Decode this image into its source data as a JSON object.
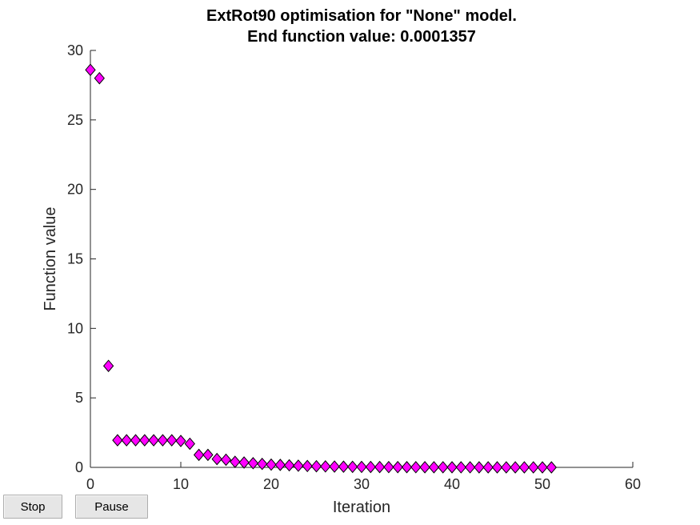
{
  "chart_data": {
    "type": "scatter",
    "title": [
      "ExtRot90 optimisation for \"None\" model.",
      "End function value: 0.0001357"
    ],
    "xlabel": "Iteration",
    "ylabel": "Function value",
    "xlim": [
      0,
      60
    ],
    "ylim": [
      0,
      30
    ],
    "xticks": [
      0,
      10,
      20,
      30,
      40,
      50,
      60
    ],
    "yticks": [
      0,
      5,
      10,
      15,
      20,
      25,
      30
    ],
    "grid": false,
    "marker": "diamond",
    "marker_color": "#ff00ff",
    "marker_edge_color": "#000000",
    "series": [
      {
        "x": [
          0,
          1,
          2,
          3,
          4,
          5,
          6,
          7,
          8,
          9,
          10,
          11,
          12,
          13,
          14,
          15,
          16,
          17,
          18,
          19,
          20,
          21,
          22,
          23,
          24,
          25,
          26,
          27,
          28,
          29,
          30,
          31,
          32,
          33,
          34,
          35,
          36,
          37,
          38,
          39,
          40,
          41,
          42,
          43,
          44,
          45,
          46,
          47,
          48,
          49,
          50,
          51
        ],
        "y": [
          28.6,
          28.0,
          7.3,
          1.95,
          1.95,
          1.95,
          1.95,
          1.95,
          1.95,
          1.95,
          1.9,
          1.7,
          0.9,
          0.9,
          0.6,
          0.55,
          0.4,
          0.35,
          0.3,
          0.25,
          0.2,
          0.18,
          0.15,
          0.12,
          0.1,
          0.08,
          0.07,
          0.06,
          0.05,
          0.04,
          0.035,
          0.03,
          0.025,
          0.02,
          0.018,
          0.015,
          0.012,
          0.01,
          0.009,
          0.008,
          0.007,
          0.006,
          0.005,
          0.004,
          0.0035,
          0.003,
          0.0025,
          0.002,
          0.0015,
          0.001,
          0.0005,
          0.0001357
        ]
      }
    ]
  },
  "controls": {
    "stop_label": "Stop",
    "pause_label": "Pause"
  }
}
